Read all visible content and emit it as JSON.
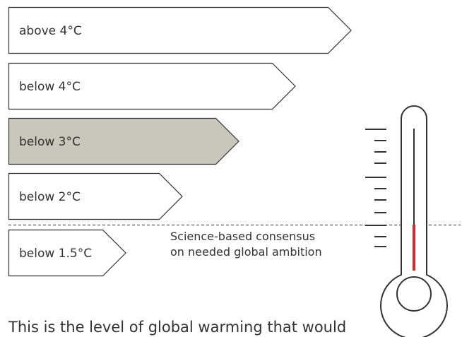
{
  "levels": [
    {
      "label": "above 4°C",
      "highlighted": false
    },
    {
      "label": "below 4°C",
      "highlighted": false
    },
    {
      "label": "below 3°C",
      "highlighted": true
    },
    {
      "label": "below 2°C",
      "highlighted": false
    },
    {
      "label": "below 1.5°C",
      "highlighted": false
    }
  ],
  "consensus_note": {
    "line1": "Science-based consensus",
    "line2": "on needed global ambition"
  },
  "footer_text": "This is the level of global warming that would",
  "colors": {
    "highlight_fill": "#c9c7bc",
    "stroke": "#333333",
    "thermometer_red": "#d7262c"
  }
}
